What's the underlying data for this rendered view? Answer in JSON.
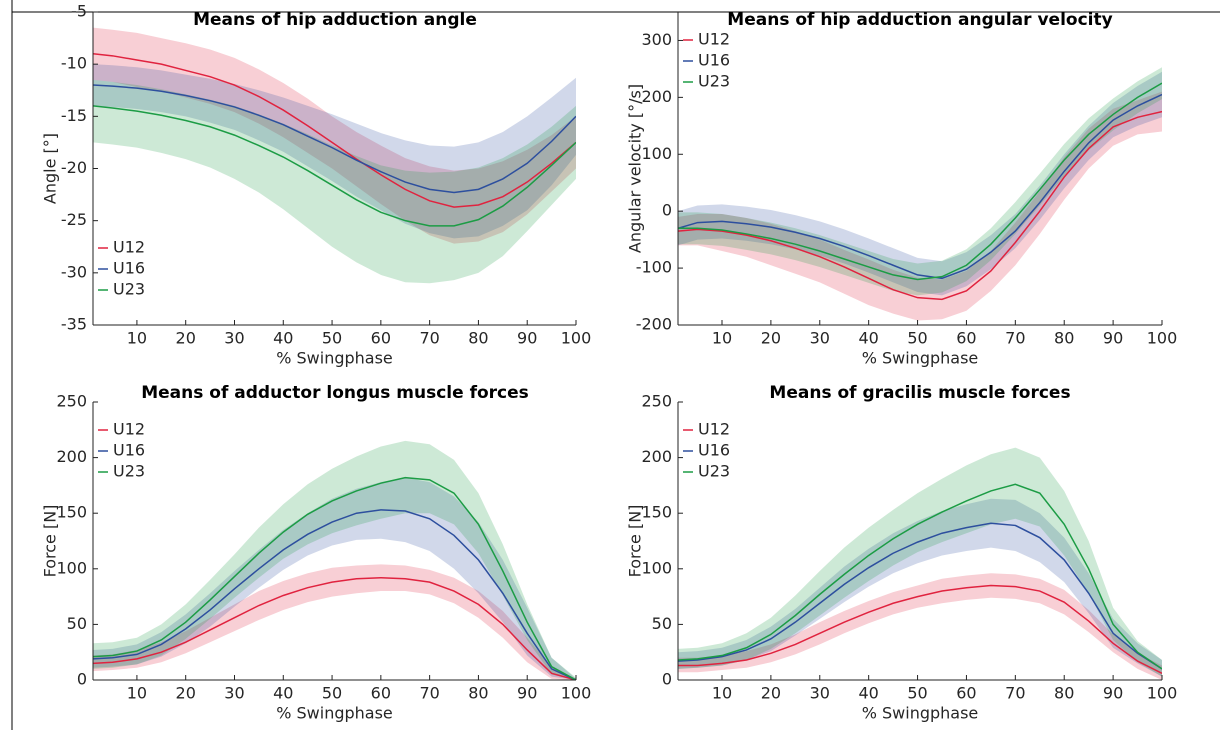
{
  "chart_data": [
    {
      "type": "line",
      "title": "Means of hip adduction angle",
      "x_label": "% Swingphase",
      "y_label": "Angle [°]",
      "x": [
        1,
        5,
        10,
        15,
        20,
        25,
        30,
        35,
        40,
        45,
        50,
        55,
        60,
        65,
        70,
        75,
        80,
        85,
        90,
        95,
        100
      ],
      "xlim": [
        1,
        100
      ],
      "xticks": [
        10,
        20,
        30,
        40,
        50,
        60,
        70,
        80,
        90,
        100
      ],
      "ylim": [
        -35,
        -5
      ],
      "yticks": [
        -35,
        -30,
        -25,
        -20,
        -15,
        -10,
        -5
      ],
      "legend": "lower left",
      "series": [
        {
          "name": "U12",
          "color": "#e0233f",
          "values": [
            -9,
            -9.2,
            -9.6,
            -10,
            -10.6,
            -11.2,
            -12,
            -13.1,
            -14.4,
            -15.9,
            -17.5,
            -19.1,
            -20.6,
            -22,
            -23.1,
            -23.7,
            -23.5,
            -22.7,
            -21.3,
            -19.5,
            -17.5
          ],
          "upper": [
            -6.5,
            -6.7,
            -7,
            -7.5,
            -8,
            -8.6,
            -9.4,
            -10.5,
            -11.8,
            -13.3,
            -15,
            -16.5,
            -17.8,
            -19,
            -19.8,
            -20.2,
            -20,
            -19.3,
            -18.2,
            -16.8,
            -15
          ],
          "lower": [
            -11.5,
            -11.7,
            -12.2,
            -12.6,
            -13.2,
            -13.8,
            -14.6,
            -15.7,
            -17,
            -18.5,
            -20,
            -21.7,
            -23.4,
            -25,
            -26.4,
            -27.2,
            -27,
            -26.1,
            -24.4,
            -22.2,
            -20
          ]
        },
        {
          "name": "U16",
          "color": "#2d4f9e",
          "values": [
            -12,
            -12.1,
            -12.3,
            -12.6,
            -13,
            -13.5,
            -14.1,
            -14.9,
            -15.8,
            -16.9,
            -18,
            -19.2,
            -20.3,
            -21.3,
            -22,
            -22.3,
            -22,
            -21,
            -19.5,
            -17.4,
            -15
          ],
          "upper": [
            -10,
            -10.1,
            -10.3,
            -10.6,
            -11,
            -11.4,
            -11.9,
            -12.5,
            -13.2,
            -14,
            -14.8,
            -15.7,
            -16.6,
            -17.3,
            -17.8,
            -17.9,
            -17.5,
            -16.5,
            -15,
            -13.2,
            -11.3
          ],
          "lower": [
            -14,
            -14.1,
            -14.3,
            -14.6,
            -15,
            -15.6,
            -16.3,
            -17.3,
            -18.4,
            -19.8,
            -21.2,
            -22.7,
            -24,
            -25.3,
            -26.2,
            -26.7,
            -26.5,
            -25.5,
            -24,
            -21.6,
            -18.7
          ]
        },
        {
          "name": "U23",
          "color": "#1c9c45",
          "values": [
            -14,
            -14.2,
            -14.5,
            -14.9,
            -15.4,
            -16,
            -16.8,
            -17.8,
            -18.9,
            -20.2,
            -21.6,
            -23,
            -24.2,
            -25,
            -25.5,
            -25.5,
            -24.9,
            -23.6,
            -21.8,
            -19.7,
            -17.5
          ],
          "upper": [
            -11.5,
            -11.7,
            -12,
            -12.4,
            -12.9,
            -13.4,
            -14,
            -14.8,
            -15.7,
            -16.7,
            -17.8,
            -18.8,
            -19.7,
            -20.2,
            -20.4,
            -20.3,
            -19.9,
            -19,
            -17.7,
            -16,
            -14
          ],
          "lower": [
            -17.5,
            -17.7,
            -18,
            -18.5,
            -19.1,
            -19.9,
            -21,
            -22.3,
            -23.9,
            -25.7,
            -27.5,
            -29,
            -30.2,
            -30.9,
            -31,
            -30.7,
            -30,
            -28.4,
            -26,
            -23.5,
            -21
          ]
        }
      ]
    },
    {
      "type": "line",
      "title": "Means of hip adduction angular velocity",
      "x_label": "% Swingphase",
      "y_label": "Angular velocity [°/s]",
      "x": [
        1,
        5,
        10,
        15,
        20,
        25,
        30,
        35,
        40,
        45,
        50,
        55,
        60,
        65,
        70,
        75,
        80,
        85,
        90,
        95,
        100
      ],
      "xlim": [
        1,
        100
      ],
      "xticks": [
        10,
        20,
        30,
        40,
        50,
        60,
        70,
        80,
        90,
        100
      ],
      "ylim": [
        -200,
        350
      ],
      "yticks": [
        -200,
        -100,
        0,
        100,
        200,
        300
      ],
      "legend": "upper left",
      "series": [
        {
          "name": "U12",
          "color": "#e0233f",
          "values": [
            -35,
            -32,
            -35,
            -42,
            -52,
            -65,
            -80,
            -98,
            -118,
            -138,
            -152,
            -155,
            -140,
            -105,
            -55,
            0,
            60,
            110,
            148,
            165,
            175
          ],
          "upper": [
            -10,
            -5,
            -5,
            -12,
            -22,
            -35,
            -50,
            -68,
            -85,
            -103,
            -117,
            -120,
            -105,
            -70,
            -20,
            35,
            95,
            145,
            180,
            195,
            210
          ],
          "lower": [
            -60,
            -60,
            -70,
            -80,
            -95,
            -110,
            -125,
            -145,
            -165,
            -180,
            -192,
            -190,
            -175,
            -140,
            -95,
            -40,
            20,
            75,
            115,
            135,
            140
          ]
        },
        {
          "name": "U16",
          "color": "#2d4f9e",
          "values": [
            -30,
            -20,
            -18,
            -22,
            -28,
            -37,
            -48,
            -62,
            -78,
            -95,
            -112,
            -118,
            -102,
            -72,
            -35,
            15,
            70,
            120,
            160,
            185,
            205
          ],
          "upper": [
            0,
            10,
            12,
            8,
            2,
            -7,
            -18,
            -32,
            -48,
            -65,
            -82,
            -88,
            -72,
            -42,
            -5,
            45,
            100,
            150,
            190,
            220,
            245
          ],
          "lower": [
            -60,
            -50,
            -48,
            -52,
            -58,
            -67,
            -78,
            -92,
            -108,
            -125,
            -142,
            -148,
            -132,
            -102,
            -65,
            -15,
            40,
            90,
            130,
            150,
            165
          ]
        },
        {
          "name": "U23",
          "color": "#1c9c45",
          "values": [
            -30,
            -30,
            -33,
            -40,
            -48,
            -58,
            -70,
            -84,
            -98,
            -112,
            -120,
            -115,
            -95,
            -58,
            -12,
            38,
            90,
            135,
            170,
            200,
            225
          ],
          "upper": [
            -2,
            -2,
            -5,
            -12,
            -20,
            -30,
            -42,
            -56,
            -70,
            -84,
            -92,
            -87,
            -67,
            -30,
            16,
            66,
            118,
            163,
            198,
            228,
            253
          ],
          "lower": [
            -58,
            -58,
            -61,
            -68,
            -76,
            -86,
            -98,
            -112,
            -126,
            -140,
            -148,
            -143,
            -123,
            -86,
            -40,
            10,
            62,
            107,
            142,
            172,
            197
          ]
        }
      ]
    },
    {
      "type": "line",
      "title": "Means of adductor longus muscle forces",
      "x_label": "% Swingphase",
      "y_label": "Force [N]",
      "x": [
        1,
        5,
        10,
        15,
        20,
        25,
        30,
        35,
        40,
        45,
        50,
        55,
        60,
        65,
        70,
        75,
        80,
        85,
        90,
        95,
        100
      ],
      "xlim": [
        1,
        100
      ],
      "xticks": [
        10,
        20,
        30,
        40,
        50,
        60,
        70,
        80,
        90,
        100
      ],
      "ylim": [
        0,
        250
      ],
      "yticks": [
        0,
        50,
        100,
        150,
        200,
        250
      ],
      "legend": "upper left",
      "series": [
        {
          "name": "U12",
          "color": "#e0233f",
          "values": [
            15,
            16,
            19,
            25,
            34,
            45,
            56,
            67,
            76,
            83,
            88,
            91,
            92,
            91,
            88,
            80,
            68,
            50,
            27,
            6,
            0
          ],
          "upper": [
            22,
            23,
            27,
            34,
            44,
            56,
            68,
            80,
            89,
            96,
            101,
            103,
            104,
            103,
            99,
            92,
            80,
            62,
            38,
            12,
            1
          ],
          "lower": [
            8,
            9,
            11,
            16,
            24,
            34,
            44,
            54,
            63,
            70,
            75,
            78,
            80,
            80,
            77,
            69,
            56,
            38,
            16,
            1,
            0
          ]
        },
        {
          "name": "U16",
          "color": "#2d4f9e",
          "values": [
            19,
            20,
            23,
            32,
            46,
            63,
            82,
            100,
            117,
            131,
            142,
            150,
            153,
            152,
            145,
            130,
            108,
            78,
            42,
            10,
            0
          ],
          "upper": [
            27,
            28,
            32,
            43,
            59,
            78,
            98,
            117,
            135,
            150,
            163,
            172,
            178,
            182,
            178,
            165,
            142,
            108,
            65,
            20,
            1
          ],
          "lower": [
            11,
            12,
            14,
            21,
            33,
            48,
            66,
            83,
            99,
            112,
            121,
            126,
            127,
            124,
            116,
            100,
            78,
            52,
            22,
            3,
            0
          ]
        },
        {
          "name": "U23",
          "color": "#1c9c45",
          "values": [
            21,
            22,
            26,
            36,
            52,
            72,
            93,
            114,
            133,
            149,
            161,
            170,
            177,
            182,
            180,
            168,
            140,
            98,
            52,
            12,
            0
          ],
          "upper": [
            33,
            34,
            38,
            50,
            68,
            90,
            113,
            137,
            158,
            176,
            190,
            201,
            210,
            215,
            212,
            198,
            168,
            122,
            68,
            20,
            2
          ],
          "lower": [
            10,
            11,
            14,
            22,
            37,
            55,
            74,
            92,
            109,
            122,
            132,
            139,
            145,
            150,
            150,
            140,
            114,
            76,
            36,
            5,
            0
          ]
        }
      ]
    },
    {
      "type": "line",
      "title": "Means of gracilis muscle forces",
      "x_label": "% Swingphase",
      "y_label": "Force [N]",
      "x": [
        1,
        5,
        10,
        15,
        20,
        25,
        30,
        35,
        40,
        45,
        50,
        55,
        60,
        65,
        70,
        75,
        80,
        85,
        90,
        95,
        100
      ],
      "xlim": [
        1,
        100
      ],
      "xticks": [
        10,
        20,
        30,
        40,
        50,
        60,
        70,
        80,
        90,
        100
      ],
      "ylim": [
        0,
        250
      ],
      "yticks": [
        0,
        50,
        100,
        150,
        200,
        250
      ],
      "legend": "upper left",
      "series": [
        {
          "name": "U12",
          "color": "#e0233f",
          "values": [
            13,
            13,
            15,
            18,
            24,
            32,
            42,
            52,
            61,
            69,
            75,
            80,
            83,
            85,
            84,
            80,
            70,
            53,
            33,
            17,
            6
          ],
          "upper": [
            20,
            20,
            22,
            26,
            32,
            41,
            52,
            62,
            71,
            79,
            85,
            91,
            94,
            96,
            95,
            91,
            81,
            63,
            41,
            24,
            13
          ],
          "lower": [
            7,
            7,
            9,
            11,
            16,
            23,
            32,
            42,
            51,
            59,
            65,
            69,
            72,
            74,
            73,
            69,
            59,
            43,
            25,
            10,
            0
          ]
        },
        {
          "name": "U16",
          "color": "#2d4f9e",
          "values": [
            17,
            18,
            21,
            27,
            37,
            52,
            69,
            86,
            101,
            114,
            124,
            132,
            137,
            141,
            139,
            128,
            108,
            78,
            42,
            24,
            10
          ],
          "upper": [
            25,
            26,
            29,
            36,
            48,
            64,
            83,
            102,
            118,
            132,
            143,
            152,
            158,
            163,
            162,
            150,
            128,
            96,
            55,
            33,
            18
          ],
          "lower": [
            10,
            11,
            13,
            18,
            26,
            40,
            55,
            70,
            84,
            96,
            105,
            112,
            116,
            119,
            116,
            106,
            88,
            60,
            29,
            15,
            3
          ]
        },
        {
          "name": "U23",
          "color": "#1c9c45",
          "values": [
            18,
            19,
            22,
            29,
            41,
            58,
            77,
            95,
            112,
            127,
            140,
            151,
            161,
            170,
            176,
            168,
            140,
            100,
            50,
            25,
            10
          ],
          "upper": [
            28,
            29,
            33,
            42,
            56,
            76,
            98,
            119,
            137,
            153,
            168,
            181,
            193,
            203,
            209,
            200,
            170,
            125,
            65,
            35,
            18
          ],
          "lower": [
            10,
            11,
            13,
            18,
            28,
            42,
            58,
            74,
            89,
            103,
            115,
            124,
            132,
            140,
            145,
            138,
            112,
            78,
            36,
            16,
            3
          ]
        }
      ]
    }
  ]
}
